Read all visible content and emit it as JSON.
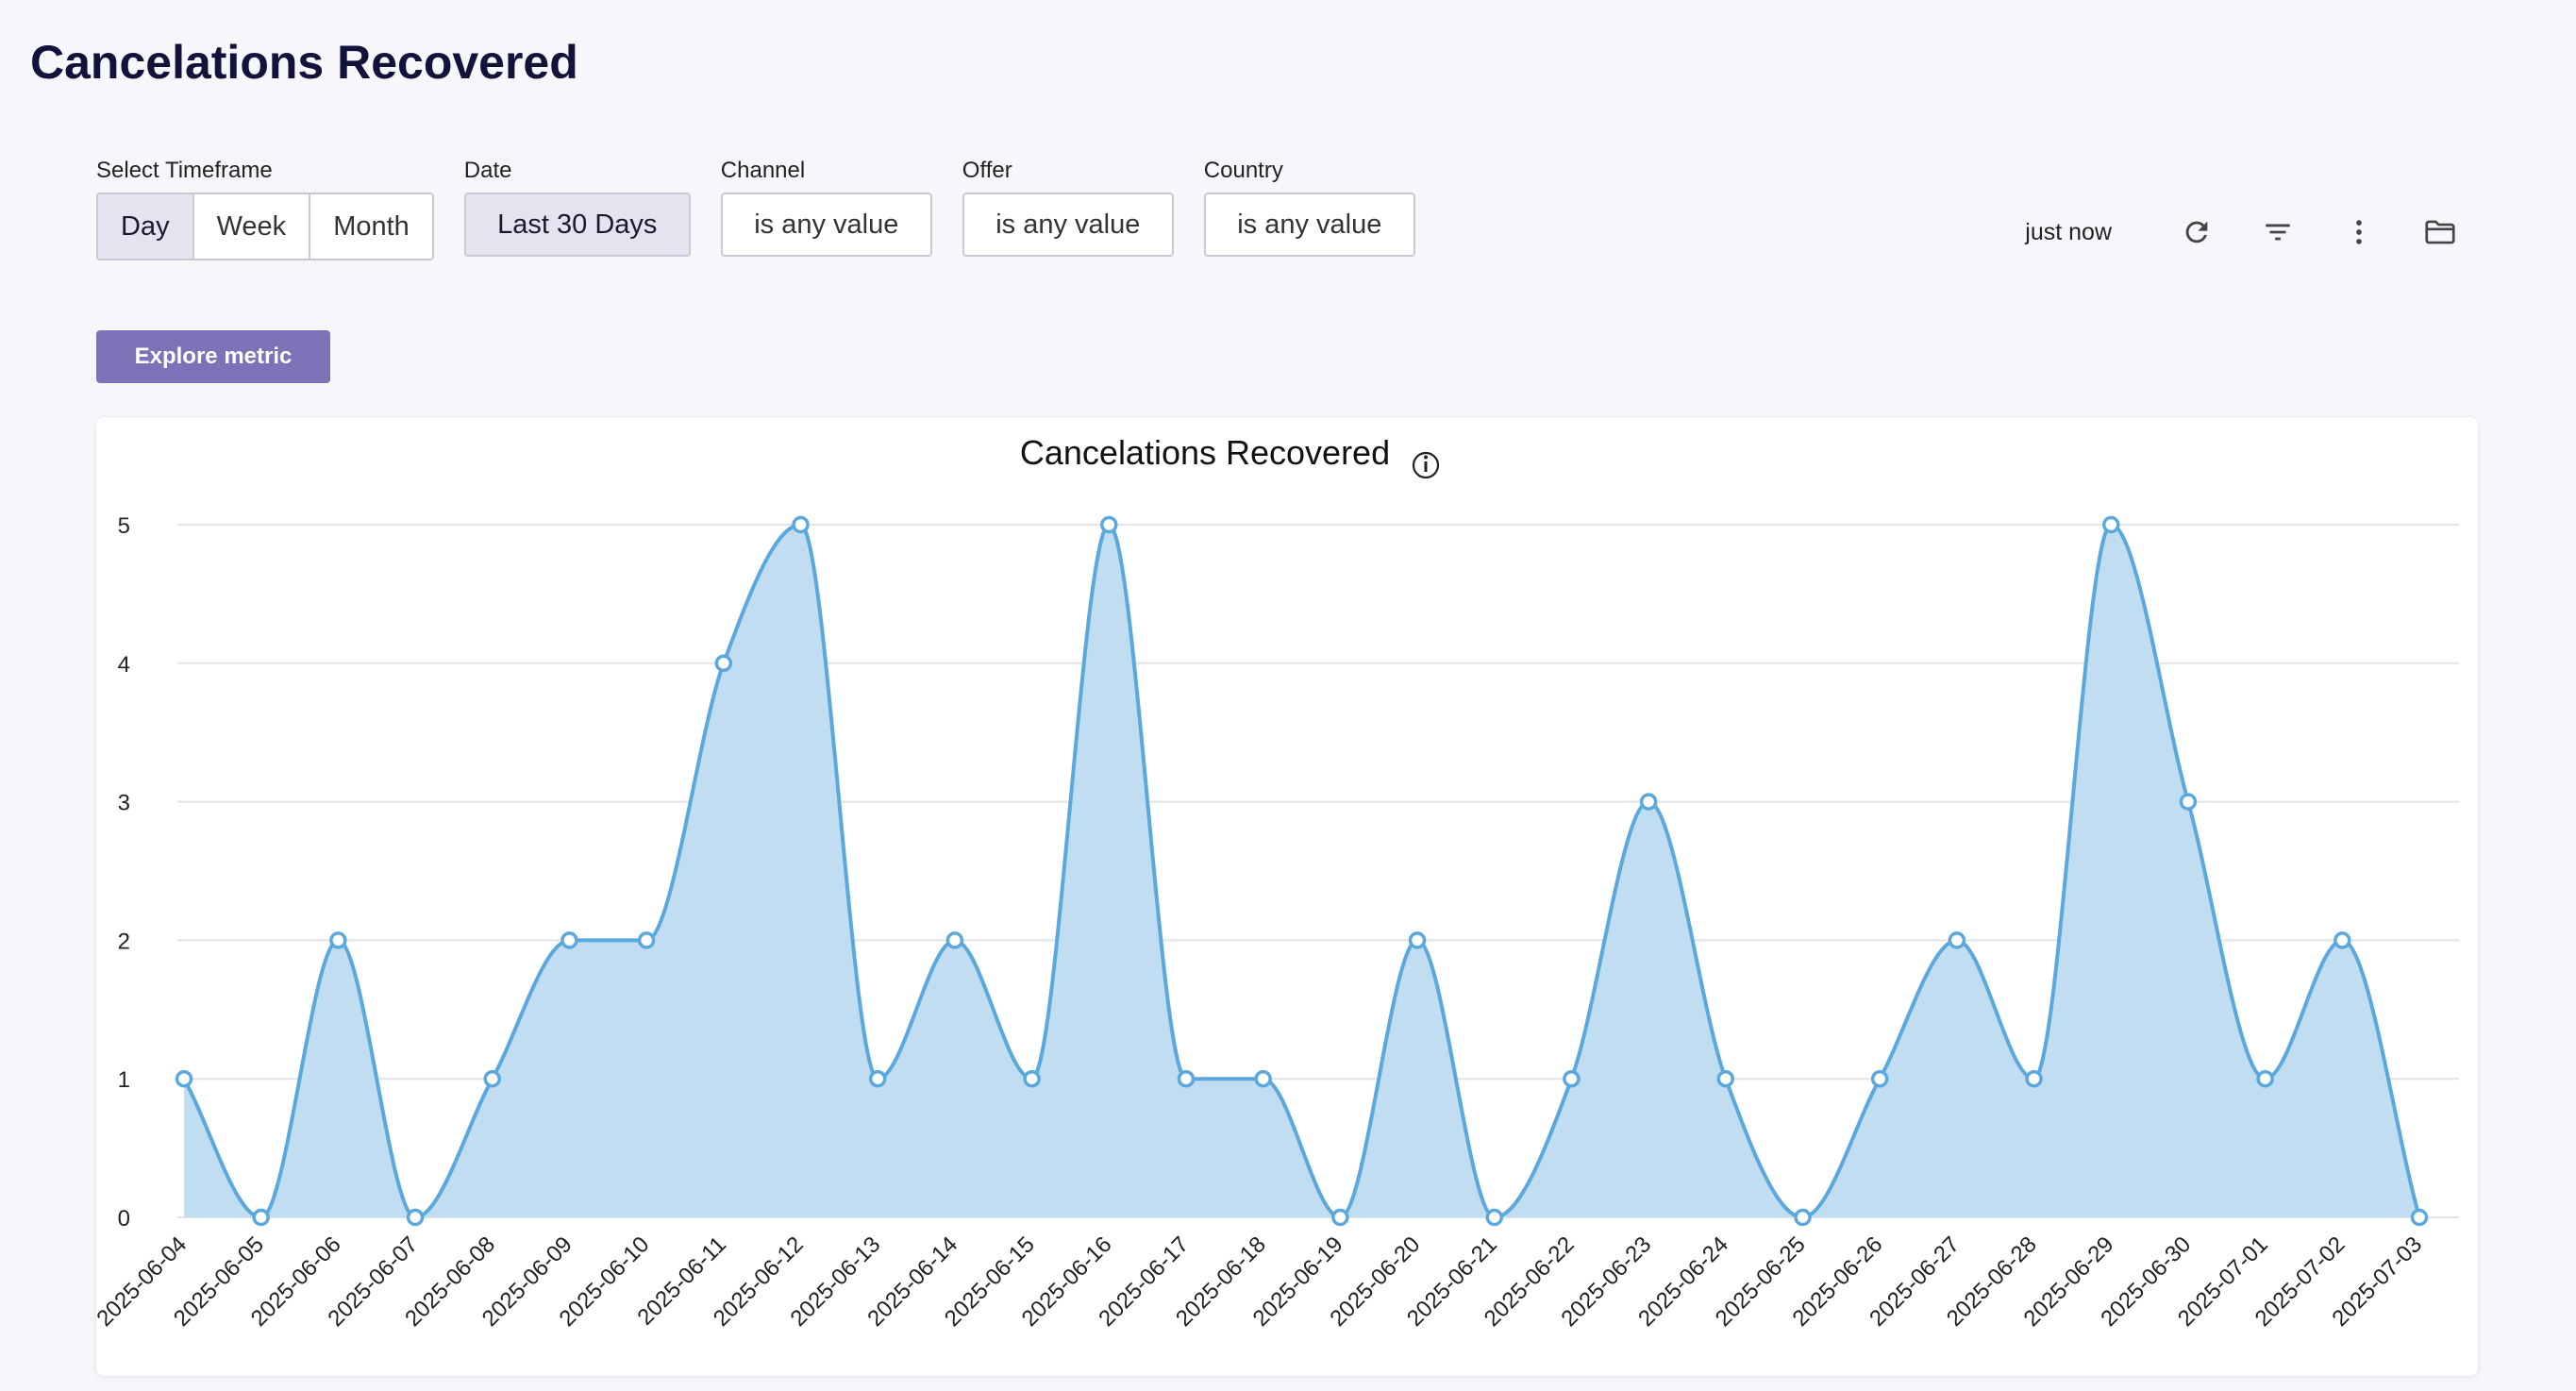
{
  "page": {
    "title": "Cancelations Recovered"
  },
  "filters": {
    "timeframe": {
      "label": "Select Timeframe",
      "options": [
        "Day",
        "Week",
        "Month"
      ],
      "selected": "Day"
    },
    "date": {
      "label": "Date",
      "value": "Last 30 Days"
    },
    "channel": {
      "label": "Channel",
      "value": "is any value"
    },
    "offer": {
      "label": "Offer",
      "value": "is any value"
    },
    "country": {
      "label": "Country",
      "value": "is any value"
    }
  },
  "toolbar": {
    "status": "just now",
    "icons": [
      "refresh-icon",
      "filter-icon",
      "more-vertical-icon",
      "folder-icon"
    ]
  },
  "explore_button": {
    "label": "Explore metric"
  },
  "colors": {
    "accent": "#7b72b8",
    "line": "#5aa8dd",
    "fill": "#c0ddf2"
  },
  "chart_data": {
    "type": "area",
    "title": "Cancelations Recovered",
    "xlabel": "",
    "ylabel": "",
    "ylim": [
      0,
      5
    ],
    "yticks": [
      0,
      1,
      2,
      3,
      4,
      5
    ],
    "grid": true,
    "smooth": true,
    "categories": [
      "2025-06-04",
      "2025-06-05",
      "2025-06-06",
      "2025-06-07",
      "2025-06-08",
      "2025-06-09",
      "2025-06-10",
      "2025-06-11",
      "2025-06-12",
      "2025-06-13",
      "2025-06-14",
      "2025-06-15",
      "2025-06-16",
      "2025-06-17",
      "2025-06-18",
      "2025-06-19",
      "2025-06-20",
      "2025-06-21",
      "2025-06-22",
      "2025-06-23",
      "2025-06-24",
      "2025-06-25",
      "2025-06-26",
      "2025-06-27",
      "2025-06-28",
      "2025-06-29",
      "2025-06-30",
      "2025-07-01",
      "2025-07-02",
      "2025-07-03"
    ],
    "values": [
      1,
      0,
      2,
      0,
      1,
      2,
      2,
      4,
      5,
      1,
      2,
      1,
      5,
      1,
      1,
      0,
      2,
      0,
      1,
      3,
      1,
      0,
      1,
      2,
      1,
      5,
      3,
      1,
      2,
      0
    ]
  }
}
